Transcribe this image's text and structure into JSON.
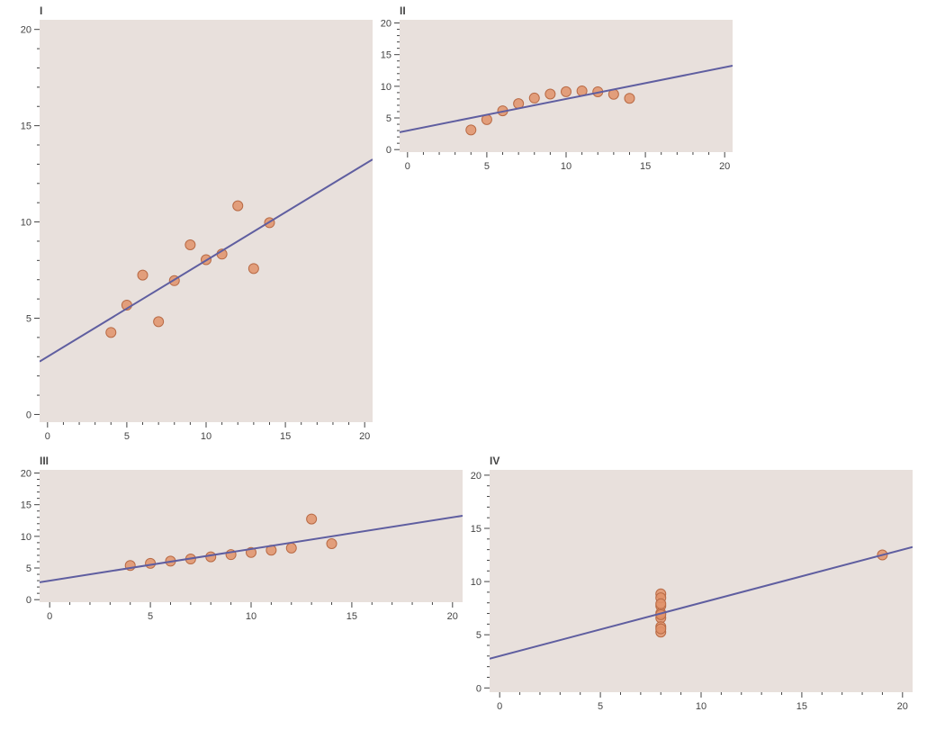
{
  "colors": {
    "panel_background": "#e8e0dc",
    "point_fill": "#e0926a",
    "point_stroke": "#b86a45",
    "fit_line": "#5f5ea0",
    "axis": "#444444"
  },
  "chart_data": [
    {
      "type": "scatter",
      "title": "I",
      "xlim": [
        -0.5,
        20.5
      ],
      "ylim": [
        -0.4,
        20.5
      ],
      "xticks": [
        0,
        5,
        10,
        15,
        20
      ],
      "yticks": [
        0,
        5,
        10,
        15,
        20
      ],
      "x": [
        4,
        5,
        6,
        7,
        8,
        9,
        10,
        11,
        12,
        13,
        14
      ],
      "y": [
        4.26,
        5.68,
        7.24,
        4.82,
        6.95,
        8.81,
        8.04,
        8.33,
        10.84,
        7.58,
        9.96
      ],
      "fit": {
        "intercept": 3.0,
        "slope": 0.5
      }
    },
    {
      "type": "scatter",
      "title": "II",
      "xlim": [
        -0.5,
        20.5
      ],
      "ylim": [
        -0.4,
        20.5
      ],
      "xticks": [
        0,
        5,
        10,
        15,
        20
      ],
      "yticks": [
        0,
        5,
        10,
        15,
        20
      ],
      "x": [
        4,
        5,
        6,
        7,
        8,
        9,
        10,
        11,
        12,
        13,
        14
      ],
      "y": [
        3.1,
        4.74,
        6.13,
        7.26,
        8.14,
        8.77,
        9.14,
        9.26,
        9.13,
        8.74,
        8.1
      ],
      "fit": {
        "intercept": 3.0,
        "slope": 0.5
      }
    },
    {
      "type": "scatter",
      "title": "III",
      "xlim": [
        -0.5,
        20.5
      ],
      "ylim": [
        -0.4,
        20.5
      ],
      "xticks": [
        0,
        5,
        10,
        15,
        20
      ],
      "yticks": [
        0,
        5,
        10,
        15,
        20
      ],
      "x": [
        4,
        5,
        6,
        7,
        8,
        9,
        10,
        11,
        12,
        13,
        14
      ],
      "y": [
        5.39,
        5.73,
        6.08,
        6.42,
        6.77,
        7.11,
        7.46,
        7.81,
        8.15,
        12.74,
        8.84
      ],
      "fit": {
        "intercept": 3.0,
        "slope": 0.5
      }
    },
    {
      "type": "scatter",
      "title": "IV",
      "xlim": [
        -0.5,
        20.5
      ],
      "ylim": [
        -0.4,
        20.5
      ],
      "xticks": [
        0,
        5,
        10,
        15,
        20
      ],
      "yticks": [
        0,
        5,
        10,
        15,
        20
      ],
      "x": [
        8,
        8,
        8,
        8,
        8,
        8,
        8,
        8,
        8,
        8,
        19
      ],
      "y": [
        6.58,
        5.76,
        7.71,
        8.84,
        8.47,
        7.04,
        5.25,
        5.56,
        7.91,
        6.89,
        12.5
      ],
      "fit": {
        "intercept": 3.0,
        "slope": 0.5
      }
    }
  ]
}
